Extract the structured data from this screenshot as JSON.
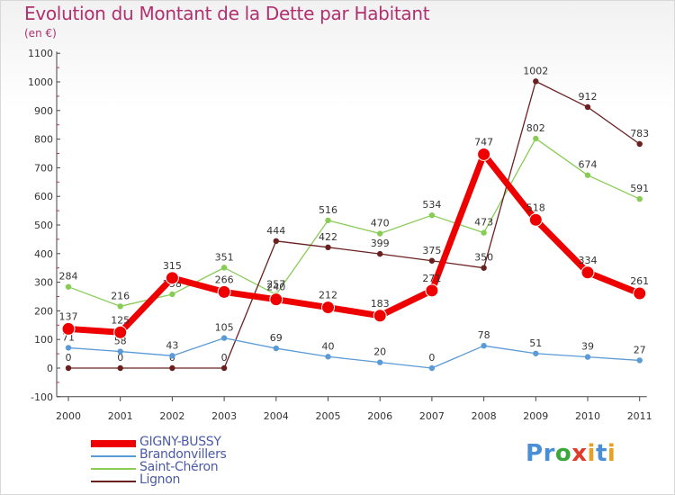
{
  "title": "Evolution du Montant de la Dette par Habitant",
  "subtitle": "(en €)",
  "logo": {
    "letters": [
      "P",
      "r",
      "o",
      "x",
      "i",
      "t",
      "i"
    ],
    "colors": [
      "#4a8fd6",
      "#4a8fd6",
      "#3aa83a",
      "#e03a2a",
      "#e8a020",
      "#4a8fd6",
      "#e8a020"
    ]
  },
  "chart_data": {
    "type": "line",
    "title": "Evolution du Montant de la Dette par Habitant",
    "subtitle": "(en €)",
    "x": [
      "2000",
      "2001",
      "2002",
      "2003",
      "2004",
      "2005",
      "2006",
      "2007",
      "2008",
      "2009",
      "2010",
      "2011"
    ],
    "ylim": [
      -100,
      1100
    ],
    "yticks": [
      -100,
      0,
      100,
      200,
      300,
      400,
      500,
      600,
      700,
      800,
      900,
      1000,
      1100
    ],
    "grid": false,
    "legend_position": "bottom-left",
    "series": [
      {
        "name": "Saint-Chéron",
        "color": "#88cc55",
        "values": [
          284,
          216,
          258,
          351,
          257,
          516,
          470,
          534,
          473,
          802,
          674,
          591
        ]
      },
      {
        "name": "Lignon",
        "color": "#6b2020",
        "values": [
          0,
          0,
          0,
          0,
          444,
          422,
          399,
          375,
          350,
          1002,
          912,
          783
        ]
      },
      {
        "name": "Brandonvillers",
        "color": "#5a9ad6",
        "values": [
          71,
          58,
          43,
          105,
          69,
          40,
          20,
          0,
          78,
          51,
          39,
          27
        ]
      },
      {
        "name": "GIGNY-BUSSY",
        "color": "#ee0000",
        "values": [
          137,
          125,
          315,
          266,
          240,
          212,
          183,
          271,
          747,
          518,
          334,
          261
        ]
      }
    ],
    "legend": [
      "GIGNY-BUSSY",
      "Brandonvillers",
      "Saint-Chéron",
      "Lignon"
    ]
  }
}
